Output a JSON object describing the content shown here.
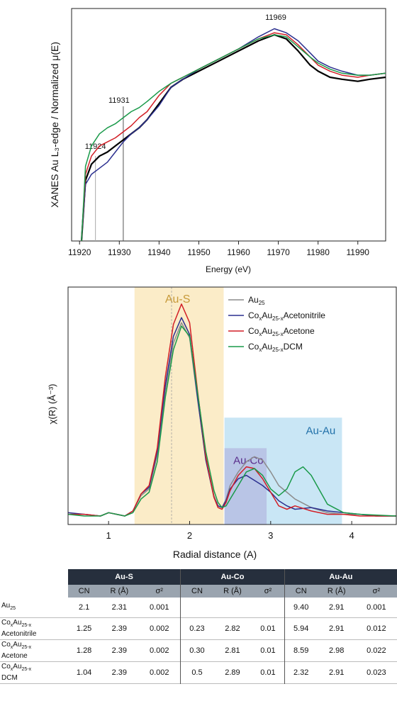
{
  "chart_data": [
    {
      "type": "line",
      "ylabel": "XANES Au L₃-edge / Normalized μ(E)",
      "xlabel": "Energy (eV)",
      "xlim": [
        11918,
        11997
      ],
      "ylim": [
        0,
        1.15
      ],
      "xticks": [
        "11920",
        "11930",
        "11940",
        "11950",
        "11960",
        "11970",
        "11980",
        "11990"
      ],
      "annotations": [
        {
          "text": "11924",
          "x": 11924
        },
        {
          "text": "11931",
          "x": 11931
        },
        {
          "text": "11969",
          "x": 11969
        }
      ],
      "series": [
        {
          "color": "#000000",
          "x": [
            11920.5,
            11921.5,
            11923,
            11925,
            11927,
            11929,
            11931,
            11933,
            11935,
            11937,
            11940,
            11943,
            11946,
            11950,
            11955,
            11960,
            11965,
            11969,
            11972,
            11975,
            11978,
            11980,
            11983,
            11986,
            11990,
            11993,
            11997
          ],
          "y": [
            0,
            0.3,
            0.38,
            0.42,
            0.44,
            0.47,
            0.5,
            0.53,
            0.56,
            0.6,
            0.68,
            0.76,
            0.8,
            0.84,
            0.89,
            0.94,
            0.99,
            1.02,
            1.0,
            0.94,
            0.87,
            0.84,
            0.81,
            0.8,
            0.79,
            0.8,
            0.81
          ]
        },
        {
          "color": "#2b2f8f",
          "x": [
            11920.5,
            11921.5,
            11923,
            11925,
            11927,
            11929,
            11931,
            11933,
            11935,
            11937,
            11940,
            11943,
            11946,
            11950,
            11955,
            11960,
            11965,
            11969,
            11972,
            11975,
            11978,
            11980,
            11983,
            11986,
            11990,
            11993,
            11997
          ],
          "y": [
            0,
            0.28,
            0.33,
            0.36,
            0.39,
            0.44,
            0.49,
            0.53,
            0.56,
            0.6,
            0.67,
            0.76,
            0.8,
            0.85,
            0.9,
            0.95,
            1.01,
            1.05,
            1.03,
            0.99,
            0.93,
            0.89,
            0.86,
            0.84,
            0.82,
            0.82,
            0.83
          ]
        },
        {
          "color": "#d21f26",
          "x": [
            11920.5,
            11921.5,
            11923,
            11925,
            11927,
            11929,
            11931,
            11933,
            11935,
            11937,
            11940,
            11943,
            11946,
            11950,
            11955,
            11960,
            11965,
            11969,
            11972,
            11975,
            11978,
            11980,
            11983,
            11986,
            11990,
            11993,
            11997
          ],
          "y": [
            0,
            0.33,
            0.42,
            0.47,
            0.49,
            0.51,
            0.54,
            0.57,
            0.61,
            0.64,
            0.72,
            0.78,
            0.81,
            0.85,
            0.9,
            0.95,
            1.0,
            1.03,
            1.02,
            0.97,
            0.91,
            0.87,
            0.84,
            0.82,
            0.81,
            0.82,
            0.83
          ]
        },
        {
          "color": "#1a9a4a",
          "x": [
            11920.5,
            11921.5,
            11923,
            11925,
            11927,
            11929,
            11931,
            11933,
            11935,
            11937,
            11940,
            11943,
            11946,
            11950,
            11955,
            11960,
            11965,
            11969,
            11972,
            11975,
            11978,
            11980,
            11983,
            11986,
            11990,
            11993,
            11997
          ],
          "y": [
            0,
            0.37,
            0.47,
            0.53,
            0.56,
            0.58,
            0.61,
            0.64,
            0.66,
            0.69,
            0.74,
            0.78,
            0.81,
            0.85,
            0.9,
            0.95,
            1.0,
            1.02,
            1.01,
            0.96,
            0.91,
            0.88,
            0.85,
            0.83,
            0.82,
            0.82,
            0.83
          ]
        }
      ]
    },
    {
      "type": "line",
      "ylabel": "χ(R) (Å⁻³)",
      "xlabel": "Radial distance (A)",
      "xlim": [
        0.5,
        4.55
      ],
      "ylim": [
        -0.05,
        1.35
      ],
      "xticks": [
        "1",
        "2",
        "3",
        "4"
      ],
      "regions": [
        {
          "label": "Au-S",
          "x0": 1.32,
          "x1": 2.42,
          "y0": 0,
          "y1": 1.35,
          "color": "#fbecc8",
          "text_color": "#c79a3a"
        },
        {
          "label": "Au-Au",
          "x0": 2.43,
          "x1": 3.88,
          "y0": 0,
          "y1": 0.58,
          "color": "#c9e6f5",
          "text_color": "#1f6fa8"
        },
        {
          "label": "Au-Co",
          "x0": 2.43,
          "x1": 2.95,
          "y0": 0,
          "y1": 0.4,
          "color": "#b3b9e0",
          "text_color": "#5a2d8c"
        }
      ],
      "legend": [
        "Au25",
        "CoxAu25-xAcetonitrile",
        "CoxAu25-xAcetone",
        "CoxAu25-xDCM"
      ],
      "series": [
        {
          "name": "Au25",
          "color": "#8c8c8c",
          "x": [
            0.5,
            0.7,
            0.9,
            1.0,
            1.1,
            1.2,
            1.3,
            1.4,
            1.5,
            1.6,
            1.7,
            1.8,
            1.9,
            2.0,
            2.1,
            2.2,
            2.3,
            2.35,
            2.4,
            2.45,
            2.5,
            2.6,
            2.7,
            2.8,
            2.9,
            3.0,
            3.1,
            3.2,
            3.3,
            3.5,
            3.7,
            3.9,
            4.1,
            4.3,
            4.55
          ],
          "y": [
            0.01,
            0.01,
            0.0,
            0.02,
            0.01,
            0.0,
            0.03,
            0.12,
            0.16,
            0.36,
            0.74,
            1.02,
            1.14,
            1.05,
            0.68,
            0.34,
            0.12,
            0.06,
            0.05,
            0.1,
            0.18,
            0.26,
            0.32,
            0.35,
            0.33,
            0.26,
            0.18,
            0.14,
            0.1,
            0.05,
            0.02,
            0.01,
            0.01,
            0.0,
            0.0
          ]
        },
        {
          "name": "CoxAu25-xAcetonitrile",
          "color": "#2b2f8f",
          "x": [
            0.5,
            0.7,
            0.9,
            1.0,
            1.1,
            1.2,
            1.3,
            1.4,
            1.5,
            1.6,
            1.7,
            1.8,
            1.9,
            2.0,
            2.1,
            2.2,
            2.3,
            2.35,
            2.4,
            2.45,
            2.5,
            2.6,
            2.7,
            2.8,
            2.9,
            3.0,
            3.1,
            3.2,
            3.3,
            3.5,
            3.7,
            3.9,
            4.1,
            4.3,
            4.55
          ],
          "y": [
            0.02,
            0.01,
            0.0,
            0.02,
            0.01,
            0.0,
            0.03,
            0.13,
            0.17,
            0.38,
            0.77,
            1.06,
            1.17,
            1.07,
            0.69,
            0.33,
            0.11,
            0.06,
            0.05,
            0.09,
            0.16,
            0.22,
            0.24,
            0.21,
            0.18,
            0.14,
            0.09,
            0.06,
            0.04,
            0.05,
            0.03,
            0.02,
            0.01,
            0.0,
            0.0
          ]
        },
        {
          "name": "CoxAu25-xAcetone",
          "color": "#d21f26",
          "x": [
            0.5,
            0.7,
            0.9,
            1.0,
            1.1,
            1.2,
            1.3,
            1.4,
            1.5,
            1.6,
            1.7,
            1.8,
            1.9,
            2.0,
            2.1,
            2.2,
            2.3,
            2.35,
            2.4,
            2.45,
            2.5,
            2.6,
            2.7,
            2.8,
            2.9,
            3.0,
            3.1,
            3.2,
            3.3,
            3.5,
            3.7,
            3.9,
            4.1,
            4.3,
            4.55
          ],
          "y": [
            0.01,
            0.01,
            0.0,
            0.02,
            0.01,
            0.0,
            0.03,
            0.13,
            0.18,
            0.4,
            0.82,
            1.13,
            1.25,
            1.14,
            0.73,
            0.35,
            0.11,
            0.05,
            0.04,
            0.08,
            0.15,
            0.24,
            0.29,
            0.28,
            0.22,
            0.14,
            0.06,
            0.04,
            0.06,
            0.03,
            0.01,
            0.01,
            0.0,
            0.0,
            0.0
          ]
        },
        {
          "name": "CoxAu25-xDCM",
          "color": "#1a9a4a",
          "x": [
            0.5,
            0.7,
            0.9,
            1.0,
            1.1,
            1.2,
            1.3,
            1.4,
            1.5,
            1.6,
            1.7,
            1.8,
            1.9,
            2.0,
            2.1,
            2.2,
            2.3,
            2.35,
            2.4,
            2.45,
            2.5,
            2.6,
            2.7,
            2.8,
            2.9,
            3.0,
            3.1,
            3.2,
            3.3,
            3.4,
            3.5,
            3.7,
            3.9,
            4.1,
            4.55
          ],
          "y": [
            0.01,
            0.0,
            0.0,
            0.02,
            0.01,
            0.0,
            0.02,
            0.1,
            0.14,
            0.32,
            0.7,
            0.98,
            1.12,
            1.06,
            0.72,
            0.38,
            0.15,
            0.08,
            0.05,
            0.06,
            0.1,
            0.18,
            0.26,
            0.28,
            0.24,
            0.16,
            0.12,
            0.16,
            0.26,
            0.29,
            0.24,
            0.07,
            0.02,
            0.01,
            0.0
          ]
        }
      ]
    },
    {
      "type": "table",
      "groups": [
        "Au-S",
        "Au-Co",
        "Au-Au"
      ],
      "columns": [
        "CN",
        "R (Å)",
        "σ²"
      ],
      "rows": [
        {
          "label_main": "Au",
          "label_sub": "25",
          "label_rest": "",
          "label_line2": "",
          "values": [
            "2.1",
            "2.31",
            "0.001",
            "",
            "",
            "",
            "9.40",
            "2.91",
            "0.001"
          ]
        },
        {
          "label_main": "Co",
          "label_sub": "x",
          "label_rest": "Au",
          "label_sub2": "25-x",
          "label_line2": "Acetonitrile",
          "values": [
            "1.25",
            "2.39",
            "0.002",
            "0.23",
            "2.82",
            "0.01",
            "5.94",
            "2.91",
            "0.012"
          ]
        },
        {
          "label_main": "Co",
          "label_sub": "x",
          "label_rest": "Au",
          "label_sub2": "25-x",
          "label_line2": "Acetone",
          "values": [
            "1.28",
            "2.39",
            "0.002",
            "0.30",
            "2.81",
            "0.01",
            "8.59",
            "2.98",
            "0.022"
          ]
        },
        {
          "label_main": "Co",
          "label_sub": "x",
          "label_rest": "Au",
          "label_sub2": "25-x",
          "label_line2": "DCM",
          "values": [
            "1.04",
            "2.39",
            "0.002",
            "0.5",
            "2.89",
            "0.01",
            "2.32",
            "2.91",
            "0.023"
          ]
        }
      ]
    }
  ]
}
